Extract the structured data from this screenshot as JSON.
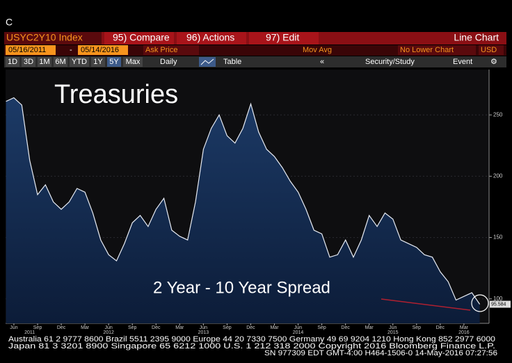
{
  "ui": {
    "corner": "C",
    "ticker": "USYC2Y10 Index",
    "menu": [
      "95) Compare",
      "96) Actions",
      "97) Edit"
    ],
    "view": "Line Chart",
    "start_date": "05/16/2011",
    "dash": "-",
    "end_date": "05/14/2016",
    "price_field": "Ask Price",
    "study": "Mov Avg",
    "lower_chart": "No Lower Chart",
    "currency": "USD",
    "periods": [
      "1D",
      "3D",
      "1M",
      "6M",
      "YTD",
      "1Y",
      "5Y",
      "Max"
    ],
    "active_period": "5Y",
    "frequency": "Daily",
    "table": "Table",
    "security_study": "Security/Study",
    "event": "Event",
    "footer": [
      "Australia 61 2 9777 8600 Brazil 5511 2395 9000 Europe 44 20 7330 7500 Germany 49 69 9204 1210 Hong Kong 852 2977 6000",
      "Japan 81 3 3201 8900     Singapore 65 6212 1000     U.S. 1 212 318 2000     Copyright 2016 Bloomberg Finance L.P.",
      "SN 977309 EDT  GMT-4:00 H464-1506-0 14-May-2016 07:27:56"
    ]
  },
  "chart_data": {
    "type": "line",
    "annotations": [
      "Treasuries",
      "2 Year - 10 Year Spread"
    ],
    "color": "#e8ecf4",
    "x": [
      "2011-05",
      "2011-06",
      "2011-07",
      "2011-08",
      "2011-09",
      "2011-10",
      "2011-11",
      "2011-12",
      "2012-01",
      "2012-02",
      "2012-03",
      "2012-04",
      "2012-05",
      "2012-06",
      "2012-07",
      "2012-08",
      "2012-09",
      "2012-10",
      "2012-11",
      "2012-12",
      "2013-01",
      "2013-02",
      "2013-03",
      "2013-04",
      "2013-05",
      "2013-06",
      "2013-07",
      "2013-08",
      "2013-09",
      "2013-10",
      "2013-11",
      "2013-12",
      "2014-01",
      "2014-02",
      "2014-03",
      "2014-04",
      "2014-05",
      "2014-06",
      "2014-07",
      "2014-08",
      "2014-09",
      "2014-10",
      "2014-11",
      "2014-12",
      "2015-01",
      "2015-02",
      "2015-03",
      "2015-04",
      "2015-05",
      "2015-06",
      "2015-07",
      "2015-08",
      "2015-09",
      "2015-10",
      "2015-11",
      "2015-12",
      "2016-01",
      "2016-02",
      "2016-03",
      "2016-04",
      "2016-05"
    ],
    "values": [
      261,
      264,
      258,
      213,
      185,
      193,
      179,
      173,
      179,
      190,
      187,
      170,
      148,
      136,
      131,
      145,
      162,
      168,
      159,
      173,
      182,
      156,
      151,
      148,
      179,
      222,
      239,
      250,
      233,
      227,
      239,
      259,
      236,
      222,
      216,
      207,
      196,
      187,
      173,
      156,
      153,
      134,
      136,
      148,
      134,
      148,
      168,
      159,
      170,
      165,
      148,
      145,
      142,
      136,
      134,
      122,
      114,
      99,
      102,
      105,
      95.584
    ],
    "ylim": [
      80,
      287
    ],
    "yticks": [
      100,
      150,
      200,
      250
    ],
    "grid": true,
    "y_axis_side": "right",
    "xlim": [
      "2011-05",
      "2016-05"
    ],
    "xticks": [
      {
        "value": "2011-06",
        "label": "Jun"
      },
      {
        "value": "2011-09",
        "label": "Sep"
      },
      {
        "value": "2011-12",
        "label": "Dec"
      },
      {
        "value": "2012-03",
        "label": "Mar"
      },
      {
        "value": "2012-06",
        "label": "Jun"
      },
      {
        "value": "2012-09",
        "label": "Sep"
      },
      {
        "value": "2012-12",
        "label": "Dec"
      },
      {
        "value": "2013-03",
        "label": "Mar"
      },
      {
        "value": "2013-06",
        "label": "Jun"
      },
      {
        "value": "2013-09",
        "label": "Sep"
      },
      {
        "value": "2013-12",
        "label": "Dec"
      },
      {
        "value": "2014-03",
        "label": "Mar"
      },
      {
        "value": "2014-06",
        "label": "Jun"
      },
      {
        "value": "2014-09",
        "label": "Sep"
      },
      {
        "value": "2014-12",
        "label": "Dec"
      },
      {
        "value": "2015-03",
        "label": "Mar"
      },
      {
        "value": "2015-06",
        "label": "Jun"
      },
      {
        "value": "2015-09",
        "label": "Sep"
      },
      {
        "value": "2015-12",
        "label": "Dec"
      },
      {
        "value": "2016-03",
        "label": "Mar"
      }
    ],
    "year_ticks": [
      {
        "value": "2011-08",
        "label": "2011"
      },
      {
        "value": "2012-06",
        "label": "2012"
      },
      {
        "value": "2013-06",
        "label": "2013"
      },
      {
        "value": "2014-06",
        "label": "2014"
      },
      {
        "value": "2015-06",
        "label": "2015"
      },
      {
        "value": "2016-03",
        "label": "2016"
      }
    ]
  }
}
